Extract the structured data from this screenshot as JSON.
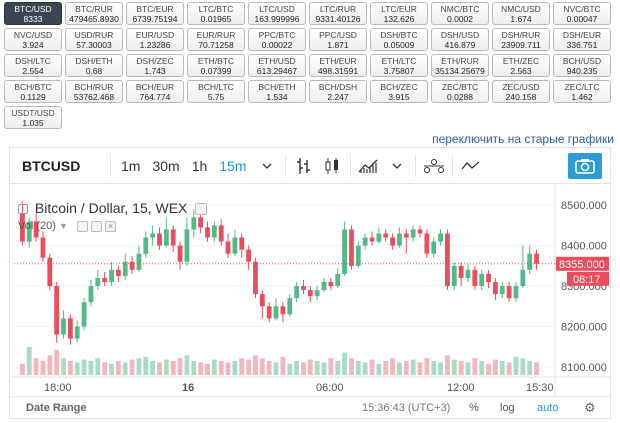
{
  "pairs": [
    {
      "name": "BTC/USD",
      "value": "8333",
      "active": true
    },
    {
      "name": "BTC/RUR",
      "value": "479465.8930"
    },
    {
      "name": "BTC/EUR",
      "value": "6739.75194"
    },
    {
      "name": "LTC/BTC",
      "value": "0.01965"
    },
    {
      "name": "LTC/USD",
      "value": "163.999996"
    },
    {
      "name": "LTC/RUR",
      "value": "9331.40126"
    },
    {
      "name": "LTC/EUR",
      "value": "132.626"
    },
    {
      "name": "NMC/BTC",
      "value": "0.0002"
    },
    {
      "name": "NMC/USD",
      "value": "1.674"
    },
    {
      "name": "NVC/BTC",
      "value": "0.00047"
    },
    {
      "name": "NVC/USD",
      "value": "3.924"
    },
    {
      "name": "USD/RUR",
      "value": "57.30003"
    },
    {
      "name": "EUR/USD",
      "value": "1.23286"
    },
    {
      "name": "EUR/RUR",
      "value": "70.71258"
    },
    {
      "name": "PPC/BTC",
      "value": "0.00022"
    },
    {
      "name": "PPC/USD",
      "value": "1.871"
    },
    {
      "name": "DSH/BTC",
      "value": "0.05009"
    },
    {
      "name": "DSH/USD",
      "value": "416.879"
    },
    {
      "name": "DSH/RUR",
      "value": "23909.711"
    },
    {
      "name": "DSH/EUR",
      "value": "336.751"
    },
    {
      "name": "DSH/LTC",
      "value": "2.554"
    },
    {
      "name": "DSH/ETH",
      "value": "0.68"
    },
    {
      "name": "DSH/ZEC",
      "value": "1.743"
    },
    {
      "name": "ETH/BTC",
      "value": "0.07399"
    },
    {
      "name": "ETH/USD",
      "value": "613.29467"
    },
    {
      "name": "ETH/EUR",
      "value": "498.31591"
    },
    {
      "name": "ETH/LTC",
      "value": "3.75807"
    },
    {
      "name": "ETH/RUR",
      "value": "35134.25679"
    },
    {
      "name": "ETH/ZEC",
      "value": "2.563"
    },
    {
      "name": "BCH/USD",
      "value": "940.235"
    },
    {
      "name": "BCH/BTC",
      "value": "0.1129"
    },
    {
      "name": "BCH/RUR",
      "value": "53762.468"
    },
    {
      "name": "BCH/EUR",
      "value": "764.774"
    },
    {
      "name": "BCH/LTC",
      "value": "5.75"
    },
    {
      "name": "BCH/ETH",
      "value": "1.534"
    },
    {
      "name": "BCH/DSH",
      "value": "2.247"
    },
    {
      "name": "BCH/ZEC",
      "value": "3.915"
    },
    {
      "name": "ZEC/BTC",
      "value": "0.0288"
    },
    {
      "name": "ZEC/USD",
      "value": "240.158"
    },
    {
      "name": "ZEC/LTC",
      "value": "1.462"
    },
    {
      "name": "USDT/USD",
      "value": "1.035"
    }
  ],
  "old_charts_link": "переключить на старые графики",
  "toolbar": {
    "symbol": "BTCUSD",
    "timeframes": [
      "1m",
      "30m",
      "1h",
      "15m"
    ],
    "selected_timeframe": "15m",
    "icons": [
      "chevron-down-icon",
      "bar-type-icon",
      "candles-icon",
      "indicators-icon",
      "compare-icon",
      "line-tool-icon",
      "camera-icon"
    ]
  },
  "legend": {
    "title": "Bitcoin / Dollar, 15, WEX",
    "volume": "Vol (20)"
  },
  "price_axis": {
    "ticks": [
      "8500.000",
      "8400.000",
      "8300.000",
      "8200.000",
      "8100.000"
    ],
    "last_price": "8355.000",
    "countdown": "08:17"
  },
  "time_axis": {
    "ticks": [
      "18:00",
      "16",
      "06:00",
      "12:00",
      "15:30"
    ]
  },
  "bottom_bar": {
    "date_range": "Date Range",
    "time": "15:36:43 (UTC+3)",
    "percent": "%",
    "log": "log",
    "auto": "auto"
  },
  "colors": {
    "up": "#53b987",
    "down": "#eb4d5c",
    "accent": "#2196f3",
    "last_price_bg": "#eb4d5c",
    "active_pair_bg": "#3a4654"
  },
  "chart_data": {
    "type": "candlestick",
    "symbol": "BTCUSD",
    "interval": "15",
    "ylim": [
      8080,
      8540
    ],
    "candles": [
      {
        "o": 8480,
        "c": 8410,
        "h": 8510,
        "l": 8400
      },
      {
        "o": 8410,
        "c": 8460,
        "h": 8470,
        "l": 8395
      },
      {
        "o": 8460,
        "c": 8420,
        "h": 8480,
        "l": 8410
      },
      {
        "o": 8420,
        "c": 8370,
        "h": 8435,
        "l": 8360
      },
      {
        "o": 8370,
        "c": 8300,
        "h": 8380,
        "l": 8290
      },
      {
        "o": 8300,
        "c": 8180,
        "h": 8310,
        "l": 8160
      },
      {
        "o": 8180,
        "c": 8220,
        "h": 8240,
        "l": 8170
      },
      {
        "o": 8220,
        "c": 8170,
        "h": 8230,
        "l": 8155
      },
      {
        "o": 8170,
        "c": 8200,
        "h": 8215,
        "l": 8160
      },
      {
        "o": 8200,
        "c": 8260,
        "h": 8270,
        "l": 8190
      },
      {
        "o": 8260,
        "c": 8300,
        "h": 8315,
        "l": 8250
      },
      {
        "o": 8300,
        "c": 8320,
        "h": 8340,
        "l": 8290
      },
      {
        "o": 8320,
        "c": 8310,
        "h": 8335,
        "l": 8300
      },
      {
        "o": 8310,
        "c": 8340,
        "h": 8360,
        "l": 8300
      },
      {
        "o": 8340,
        "c": 8325,
        "h": 8350,
        "l": 8310
      },
      {
        "o": 8325,
        "c": 8360,
        "h": 8380,
        "l": 8315
      },
      {
        "o": 8360,
        "c": 8340,
        "h": 8375,
        "l": 8330
      },
      {
        "o": 8340,
        "c": 8380,
        "h": 8400,
        "l": 8335
      },
      {
        "o": 8380,
        "c": 8420,
        "h": 8435,
        "l": 8370
      },
      {
        "o": 8420,
        "c": 8430,
        "h": 8450,
        "l": 8400
      },
      {
        "o": 8430,
        "c": 8400,
        "h": 8445,
        "l": 8390
      },
      {
        "o": 8400,
        "c": 8440,
        "h": 8470,
        "l": 8395
      },
      {
        "o": 8440,
        "c": 8400,
        "h": 8450,
        "l": 8385
      },
      {
        "o": 8400,
        "c": 8360,
        "h": 8410,
        "l": 8340
      },
      {
        "o": 8360,
        "c": 8440,
        "h": 8470,
        "l": 8350
      },
      {
        "o": 8440,
        "c": 8470,
        "h": 8490,
        "l": 8420
      },
      {
        "o": 8470,
        "c": 8445,
        "h": 8485,
        "l": 8430
      },
      {
        "o": 8445,
        "c": 8420,
        "h": 8460,
        "l": 8410
      },
      {
        "o": 8420,
        "c": 8450,
        "h": 8460,
        "l": 8410
      },
      {
        "o": 8450,
        "c": 8410,
        "h": 8465,
        "l": 8400
      },
      {
        "o": 8410,
        "c": 8380,
        "h": 8430,
        "l": 8370
      },
      {
        "o": 8380,
        "c": 8420,
        "h": 8440,
        "l": 8375
      },
      {
        "o": 8420,
        "c": 8390,
        "h": 8430,
        "l": 8370
      },
      {
        "o": 8390,
        "c": 8360,
        "h": 8400,
        "l": 8340
      },
      {
        "o": 8360,
        "c": 8280,
        "h": 8370,
        "l": 8270
      },
      {
        "o": 8280,
        "c": 8250,
        "h": 8290,
        "l": 8220
      },
      {
        "o": 8250,
        "c": 8220,
        "h": 8260,
        "l": 8210
      },
      {
        "o": 8220,
        "c": 8250,
        "h": 8270,
        "l": 8215
      },
      {
        "o": 8250,
        "c": 8230,
        "h": 8260,
        "l": 8210
      },
      {
        "o": 8230,
        "c": 8270,
        "h": 8280,
        "l": 8225
      },
      {
        "o": 8270,
        "c": 8300,
        "h": 8310,
        "l": 8260
      },
      {
        "o": 8300,
        "c": 8290,
        "h": 8315,
        "l": 8280
      },
      {
        "o": 8290,
        "c": 8275,
        "h": 8300,
        "l": 8260
      },
      {
        "o": 8275,
        "c": 8290,
        "h": 8300,
        "l": 8265
      },
      {
        "o": 8290,
        "c": 8310,
        "h": 8320,
        "l": 8285
      },
      {
        "o": 8310,
        "c": 8300,
        "h": 8320,
        "l": 8290
      },
      {
        "o": 8300,
        "c": 8330,
        "h": 8345,
        "l": 8295
      },
      {
        "o": 8330,
        "c": 8440,
        "h": 8460,
        "l": 8325
      },
      {
        "o": 8440,
        "c": 8350,
        "h": 8450,
        "l": 8340
      },
      {
        "o": 8350,
        "c": 8400,
        "h": 8410,
        "l": 8345
      },
      {
        "o": 8400,
        "c": 8420,
        "h": 8430,
        "l": 8390
      },
      {
        "o": 8420,
        "c": 8410,
        "h": 8435,
        "l": 8400
      },
      {
        "o": 8410,
        "c": 8430,
        "h": 8445,
        "l": 8405
      },
      {
        "o": 8430,
        "c": 8420,
        "h": 8440,
        "l": 8410
      },
      {
        "o": 8420,
        "c": 8400,
        "h": 8430,
        "l": 8390
      },
      {
        "o": 8400,
        "c": 8430,
        "h": 8445,
        "l": 8395
      },
      {
        "o": 8430,
        "c": 8420,
        "h": 8440,
        "l": 8380
      },
      {
        "o": 8420,
        "c": 8440,
        "h": 8450,
        "l": 8410
      },
      {
        "o": 8440,
        "c": 8430,
        "h": 8450,
        "l": 8420
      },
      {
        "o": 8430,
        "c": 8380,
        "h": 8440,
        "l": 8370
      },
      {
        "o": 8380,
        "c": 8410,
        "h": 8420,
        "l": 8370
      },
      {
        "o": 8410,
        "c": 8430,
        "h": 8440,
        "l": 8400
      },
      {
        "o": 8430,
        "c": 8300,
        "h": 8440,
        "l": 8290
      },
      {
        "o": 8300,
        "c": 8350,
        "h": 8360,
        "l": 8290
      },
      {
        "o": 8350,
        "c": 8320,
        "h": 8360,
        "l": 8300
      },
      {
        "o": 8320,
        "c": 8340,
        "h": 8355,
        "l": 8310
      },
      {
        "o": 8340,
        "c": 8300,
        "h": 8350,
        "l": 8290
      },
      {
        "o": 8300,
        "c": 8330,
        "h": 8340,
        "l": 8290
      },
      {
        "o": 8330,
        "c": 8310,
        "h": 8340,
        "l": 8295
      },
      {
        "o": 8310,
        "c": 8280,
        "h": 8320,
        "l": 8265
      },
      {
        "o": 8280,
        "c": 8300,
        "h": 8310,
        "l": 8270
      },
      {
        "o": 8300,
        "c": 8270,
        "h": 8310,
        "l": 8260
      },
      {
        "o": 8270,
        "c": 8300,
        "h": 8310,
        "l": 8260
      },
      {
        "o": 8300,
        "c": 8340,
        "h": 8400,
        "l": 8295
      },
      {
        "o": 8340,
        "c": 8380,
        "h": 8400,
        "l": 8330
      },
      {
        "o": 8380,
        "c": 8355,
        "h": 8390,
        "l": 8340
      }
    ],
    "volumes": [
      8,
      20,
      12,
      10,
      14,
      18,
      12,
      10,
      9,
      11,
      10,
      12,
      9,
      8,
      10,
      9,
      11,
      12,
      13,
      10,
      9,
      11,
      10,
      12,
      14,
      10,
      9,
      8,
      11,
      10,
      9,
      10,
      12,
      11,
      14,
      12,
      10,
      9,
      13,
      8,
      10,
      9,
      11,
      10,
      9,
      12,
      10,
      16,
      12,
      10,
      9,
      11,
      8,
      10,
      12,
      9,
      10,
      11,
      9,
      12,
      10,
      9,
      14,
      11,
      10,
      9,
      12,
      10,
      8,
      11,
      10,
      9,
      13,
      12,
      10,
      9
    ]
  }
}
